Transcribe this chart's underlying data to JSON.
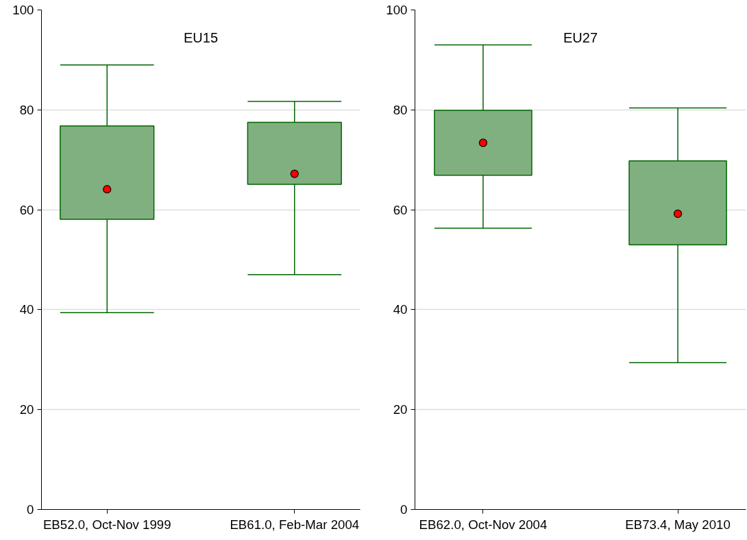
{
  "chart_data": [
    {
      "type": "box",
      "title": "EU15",
      "categories": [
        "EB52.0, Oct-Nov 1999",
        "EB61.0, Feb-Mar 2004"
      ],
      "color": "#80b080",
      "ylim": [
        0,
        100
      ],
      "yticks": [
        0,
        20,
        40,
        60,
        80,
        100
      ],
      "grid": "y",
      "boxes": [
        {
          "low": 39.4,
          "q1": 58.1,
          "median": 64.1,
          "q3": 76.8,
          "high": 89.0
        },
        {
          "low": 47.0,
          "q1": 65.1,
          "median": 67.2,
          "q3": 77.5,
          "high": 81.7
        }
      ]
    },
    {
      "type": "box",
      "title": "EU27",
      "categories": [
        "EB62.0, Oct-Nov 2004",
        "EB73.4, May 2010"
      ],
      "color": "#80b080",
      "ylim": [
        0,
        100
      ],
      "yticks": [
        0,
        20,
        40,
        60,
        80,
        100
      ],
      "grid": "y",
      "boxes": [
        {
          "low": 56.3,
          "q1": 66.9,
          "median": 73.4,
          "q3": 79.9,
          "high": 93.0
        },
        {
          "low": 29.4,
          "q1": 53.0,
          "median": 59.2,
          "q3": 69.8,
          "high": 80.4
        }
      ]
    }
  ]
}
